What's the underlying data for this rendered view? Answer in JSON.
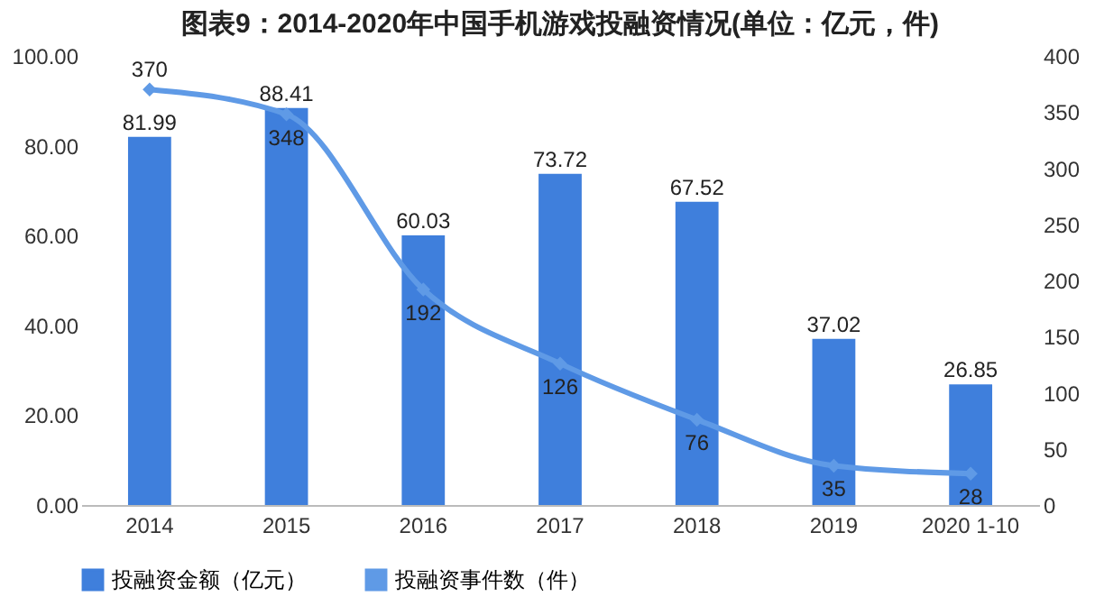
{
  "chart_data": {
    "type": "bar",
    "title": "图表9：2014-2020年中国手机游戏投融资情况(单位：亿元，件)",
    "categories": [
      "2014",
      "2015",
      "2016",
      "2017",
      "2018",
      "2019",
      "2020 1-10"
    ],
    "series": [
      {
        "name": "投融资金额（亿元）",
        "color": "#3f7fdc",
        "values": [
          81.99,
          88.41,
          60.03,
          73.72,
          67.52,
          37.02,
          26.85
        ]
      },
      {
        "name": "投融资事件数（件）",
        "type": "line",
        "axis": "y2",
        "color": "#5f9ae6",
        "values": [
          370,
          348,
          192,
          126,
          76,
          35,
          28
        ]
      }
    ],
    "ylim": [
      0,
      100
    ],
    "yticks": [
      {
        "value": 0,
        "label": "0.00"
      },
      {
        "value": 20,
        "label": "20.00"
      },
      {
        "value": 40,
        "label": "40.00"
      },
      {
        "value": 60,
        "label": "60.00"
      },
      {
        "value": 80,
        "label": "80.00"
      },
      {
        "value": 100,
        "label": "100.00"
      }
    ],
    "y2lim": [
      0,
      400
    ],
    "y2ticks": [
      0,
      50,
      100,
      150,
      200,
      250,
      300,
      350,
      400
    ],
    "data_labels": true,
    "legend": "bottom",
    "marker": "diamond",
    "line_style": "solid"
  }
}
